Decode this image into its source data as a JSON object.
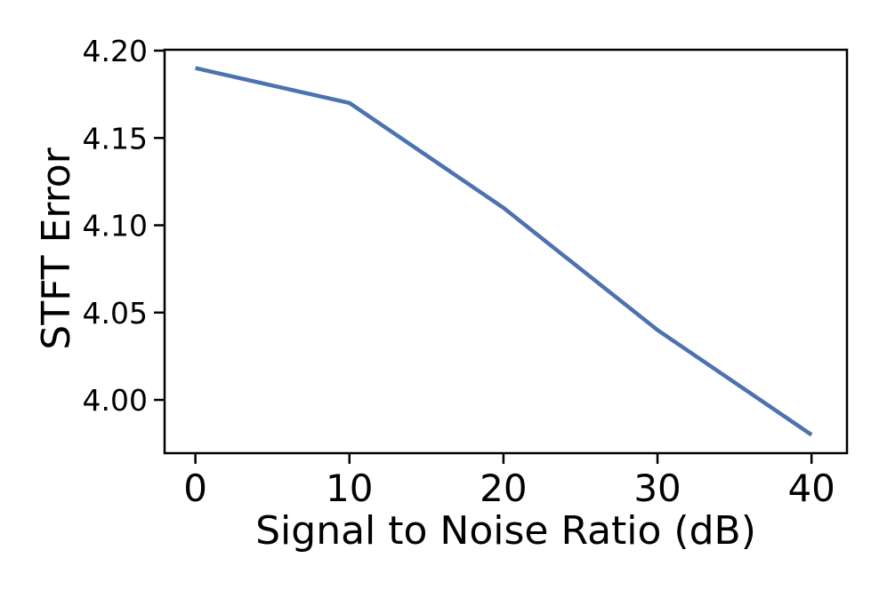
{
  "figure": {
    "background": "#ffffff",
    "axis_color": "#000000"
  },
  "chart_data": {
    "type": "line",
    "title": "",
    "xlabel": "Signal to Noise Ratio (dB)",
    "ylabel": "STFT Error",
    "x": [
      0,
      10,
      20,
      30,
      40
    ],
    "series": [
      {
        "name": "STFT Error",
        "values": [
          4.19,
          4.17,
          4.11,
          4.04,
          3.98
        ],
        "color": "#4C72B0",
        "linewidth": 4.5
      }
    ],
    "xticks": [
      0,
      10,
      20,
      30,
      40
    ],
    "xtick_labels": [
      "0",
      "10",
      "20",
      "30",
      "40"
    ],
    "yticks": [
      4.0,
      4.05,
      4.1,
      4.15,
      4.2
    ],
    "ytick_labels": [
      "4.00",
      "4.05",
      "4.10",
      "4.15",
      "4.20"
    ],
    "xlim": [
      -2.0,
      42.3
    ],
    "ylim": [
      3.9695,
      4.2005
    ],
    "grid": false,
    "legend": "none",
    "spines": "box"
  }
}
